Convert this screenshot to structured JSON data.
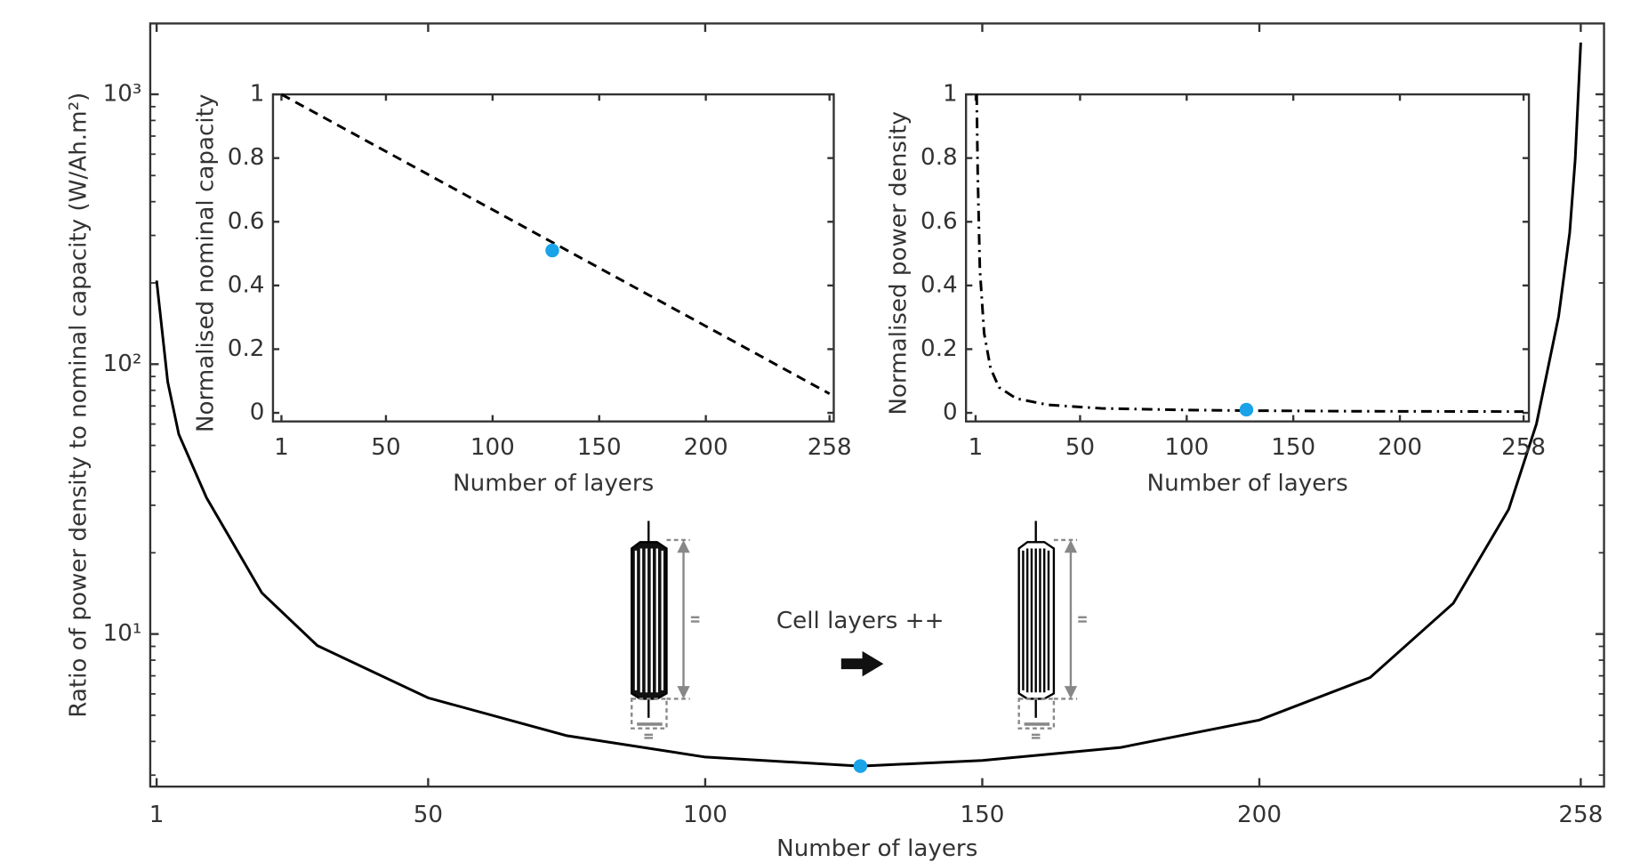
{
  "chart_data": [
    {
      "type": "line",
      "xlabel": "Number of layers",
      "ylabel": "Ratio of power density to nominal capacity (W/Ah.m²)",
      "xlim": [
        -0.15,
        262.2
      ],
      "ylim": [
        2.72,
        1830
      ],
      "ylog": true,
      "xticks": [
        1,
        50,
        100,
        150,
        200,
        258
      ],
      "yticks": [
        {
          "value": 10,
          "label": "10¹"
        },
        {
          "value": 100,
          "label": "10²"
        },
        {
          "value": 1000,
          "label": "10³"
        }
      ],
      "yminorticks": [
        3,
        4,
        5,
        6,
        7,
        8,
        9,
        20,
        30,
        40,
        50,
        60,
        70,
        80,
        90,
        200,
        300,
        400,
        500,
        600,
        700,
        800,
        900
      ],
      "series": [
        {
          "color": "#000000",
          "dash": "solid",
          "x": [
            1,
            3,
            5,
            10,
            20,
            30,
            50,
            75,
            100,
            128,
            150,
            175,
            200,
            220,
            235,
            245,
            250,
            254,
            256,
            257,
            258
          ],
          "values": [
            204,
            86,
            55,
            32,
            14.2,
            9.06,
            5.8,
            4.2,
            3.5,
            3.24,
            3.4,
            3.8,
            4.8,
            6.9,
            13,
            29,
            60,
            150,
            306,
            575,
            1555
          ]
        }
      ],
      "highlight": {
        "x": 128,
        "y": 3.24,
        "color": "#1aa3e8"
      },
      "annotation": "Cell layers ++"
    },
    {
      "type": "line",
      "xlabel": "Number of layers",
      "ylabel": "Normalised nominal capacity",
      "xlim": [
        -2.97,
        259.98
      ],
      "ylim": [
        -0.027,
        1
      ],
      "xticks": [
        1,
        50,
        100,
        150,
        200,
        258
      ],
      "yticks": [
        0,
        0.2,
        0.4,
        0.6,
        0.8,
        1
      ],
      "series": [
        {
          "color": "#000000",
          "dash": "dashed",
          "x": [
            1,
            258
          ],
          "values": [
            1,
            0.06
          ]
        }
      ],
      "highlight": {
        "x": 128,
        "y": 0.51,
        "color": "#1aa3e8"
      }
    },
    {
      "type": "line",
      "xlabel": "Number of layers",
      "ylabel": "Normalised power density",
      "xlim": [
        -3.5,
        260.5
      ],
      "ylim": [
        -0.027,
        1
      ],
      "xticks": [
        1,
        50,
        100,
        150,
        200,
        258
      ],
      "yticks": [
        0,
        0.2,
        0.4,
        0.6,
        0.8,
        1
      ],
      "series": [
        {
          "color": "#000000",
          "dash": "dashdot",
          "x": [
            1.5,
            2,
            3,
            5,
            8,
            12,
            20,
            35,
            60,
            100,
            128,
            180,
            258
          ],
          "values": [
            1,
            0.75,
            0.45,
            0.25,
            0.14,
            0.08,
            0.045,
            0.025,
            0.014,
            0.009,
            0.007,
            0.005,
            0.004
          ]
        }
      ],
      "highlight": {
        "x": 128,
        "y": 0.01,
        "color": "#1aa3e8"
      }
    }
  ]
}
